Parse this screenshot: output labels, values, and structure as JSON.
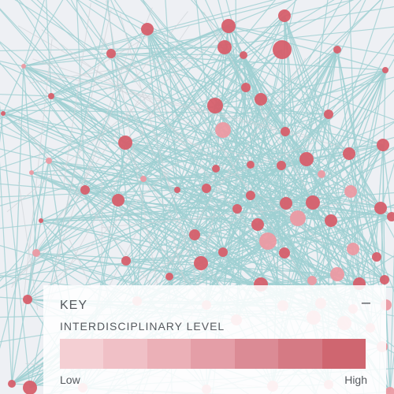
{
  "key": {
    "title": "KEY",
    "collapse_symbol": "–",
    "subtitle": "INTERDISCIPLINARY LEVEL",
    "low_label": "Low",
    "high_label": "High",
    "scale_colors": [
      "#f4cfd3",
      "#f0c0c6",
      "#ebb0b7",
      "#e49ea7",
      "#db8b95",
      "#d57a84",
      "#cf6670"
    ]
  },
  "colors": {
    "background": "#eef0f4",
    "edge": "#9fd0d2",
    "edge_muted": "#cfd4d8",
    "node_dark": "#d65f6b",
    "node_light": "#eb9aa3"
  }
}
